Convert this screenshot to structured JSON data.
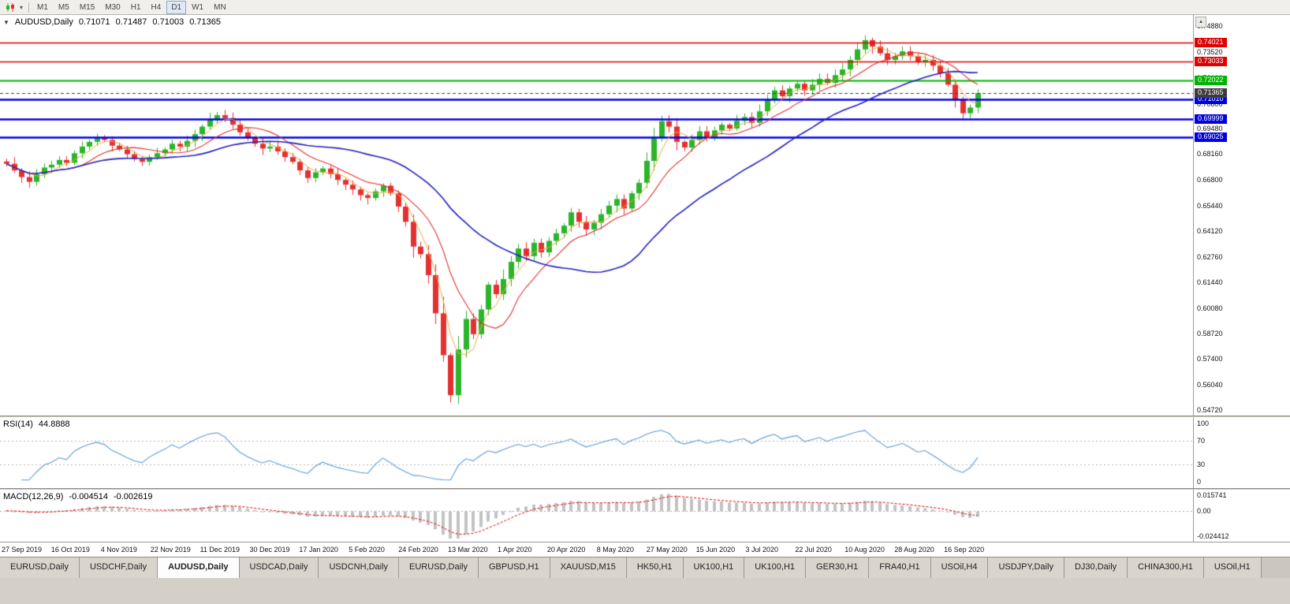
{
  "toolbar": {
    "timeframes": [
      "M1",
      "M5",
      "M15",
      "M30",
      "H1",
      "H4",
      "D1",
      "W1",
      "MN"
    ],
    "active_timeframe": "D1",
    "icons": [
      {
        "name": "chart-type-icon"
      },
      {
        "name": "dropdown-caret-icon",
        "glyph": "▾"
      },
      {
        "name": "scroll-top-icon",
        "glyph": "▴"
      }
    ]
  },
  "chart": {
    "title": {
      "symbol": "AUDUSD,Daily",
      "open": "0.71071",
      "high": "0.71487",
      "low": "0.71003",
      "close": "0.71365"
    },
    "price_axis_labels": [
      "0.74880",
      "0.73520",
      "0.72160",
      "0.70800",
      "0.69480",
      "0.68160",
      "0.66800",
      "0.65440",
      "0.64120",
      "0.62760",
      "0.61440",
      "0.60080",
      "0.58720",
      "0.57400",
      "0.56040",
      "0.54720"
    ],
    "levels": [
      {
        "price": 0.74021,
        "label": "0.74021",
        "color": "#e00000",
        "width": 1.5
      },
      {
        "price": 0.73033,
        "label": "0.73033",
        "color": "#e00000",
        "width": 1.5
      },
      {
        "price": 0.72022,
        "label": "0.72022",
        "color": "#00b300",
        "width": 2
      },
      {
        "price": 0.7101,
        "label": "0.71010",
        "color": "#0000e0",
        "width": 2.5
      },
      {
        "price": 0.69999,
        "label": "0.69999",
        "color": "#0000e0",
        "width": 2.5
      },
      {
        "price": 0.69025,
        "label": "0.69025",
        "color": "#0000e0",
        "width": 2.5
      }
    ],
    "bid_label": {
      "price": 0.71365,
      "label": "0.71365",
      "color": "#3c3c3c"
    },
    "colors": {
      "bull": "#2ab52a",
      "bear": "#e53030",
      "ma_fast": "#f2a93b",
      "ma_mid": "#e03030",
      "ma_slow": "#1f1fbf",
      "rsi": "#5b9bd5",
      "macd_hist": "#c2c2c2",
      "macd_signal": "#e00000"
    }
  },
  "indicators": {
    "rsi": {
      "name": "RSI(14)",
      "value": "44.8888",
      "levels": [
        "100",
        "70",
        "30",
        "0"
      ]
    },
    "macd": {
      "name": "MACD(12,26,9)",
      "value": "-0.004514",
      "signal": "-0.002619",
      "axis": [
        "0.015741",
        "0.00",
        "-0.024412"
      ]
    }
  },
  "chart_data": {
    "type": "candlestick",
    "title": "AUDUSD Daily",
    "x_labels": [
      "27 Sep 2019",
      "16 Oct 2019",
      "4 Nov 2019",
      "22 Nov 2019",
      "11 Dec 2019",
      "30 Dec 2019",
      "17 Jan 2020",
      "5 Feb 2020",
      "24 Feb 2020",
      "13 Mar 2020",
      "1 Apr 2020",
      "20 Apr 2020",
      "8 May 2020",
      "27 May 2020",
      "15 Jun 2020",
      "3 Jul 2020",
      "22 Jul 2020",
      "10 Aug 2020",
      "28 Aug 2020",
      "16 Sep 2020"
    ],
    "y_range": [
      0.5443,
      0.7546
    ],
    "current_ohlc": {
      "open": 0.71071,
      "high": 0.71487,
      "low": 0.71003,
      "close": 0.71365
    },
    "closes": [
      0.6765,
      0.673,
      0.6695,
      0.667,
      0.671,
      0.6745,
      0.676,
      0.6785,
      0.677,
      0.682,
      0.6855,
      0.688,
      0.69,
      0.689,
      0.686,
      0.684,
      0.6815,
      0.679,
      0.6775,
      0.68,
      0.682,
      0.684,
      0.687,
      0.6855,
      0.6885,
      0.692,
      0.696,
      0.7,
      0.702,
      0.7005,
      0.697,
      0.693,
      0.69,
      0.687,
      0.6845,
      0.6855,
      0.683,
      0.68,
      0.6775,
      0.673,
      0.669,
      0.672,
      0.674,
      0.671,
      0.668,
      0.6655,
      0.663,
      0.66,
      0.6585,
      0.662,
      0.665,
      0.661,
      0.654,
      0.646,
      0.633,
      0.629,
      0.618,
      0.598,
      0.576,
      0.555,
      0.579,
      0.595,
      0.587,
      0.6,
      0.613,
      0.608,
      0.616,
      0.625,
      0.632,
      0.628,
      0.635,
      0.63,
      0.636,
      0.64,
      0.644,
      0.651,
      0.646,
      0.642,
      0.6455,
      0.65,
      0.6545,
      0.658,
      0.653,
      0.661,
      0.6665,
      0.678,
      0.69,
      0.6988,
      0.696,
      0.688,
      0.685,
      0.689,
      0.6935,
      0.6905,
      0.694,
      0.697,
      0.695,
      0.699,
      0.701,
      0.698,
      0.704,
      0.71,
      0.715,
      0.712,
      0.716,
      0.7185,
      0.715,
      0.718,
      0.721,
      0.719,
      0.723,
      0.726,
      0.731,
      0.7365,
      0.7414,
      0.738,
      0.7345,
      0.731,
      0.733,
      0.7355,
      0.733,
      0.73,
      0.731,
      0.728,
      0.724,
      0.718,
      0.71,
      0.703,
      0.706,
      0.7136
    ],
    "horizontal_levels": [
      0.74021,
      0.73033,
      0.72022,
      0.7101,
      0.69999,
      0.69025
    ],
    "rsi": {
      "period": 14,
      "current": 44.8888,
      "range": [
        0,
        100
      ],
      "guides": [
        70,
        30
      ]
    },
    "macd": {
      "fast": 12,
      "slow": 26,
      "signal_period": 9,
      "macd": -0.004514,
      "signal": -0.002619,
      "range": [
        -0.024412,
        0.015741
      ]
    }
  },
  "tabs": {
    "items": [
      "EURUSD,Daily",
      "USDCHF,Daily",
      "AUDUSD,Daily",
      "USDCAD,Daily",
      "USDCNH,Daily",
      "EURUSD,Daily",
      "GBPUSD,H1",
      "XAUUSD,M15",
      "HK50,H1",
      "UK100,H1",
      "UK100,H1",
      "GER30,H1",
      "FRA40,H1",
      "USOil,H4",
      "USDJPY,Daily",
      "DJ30,Daily",
      "CHINA300,H1",
      "USOil,H1"
    ],
    "active_index": 2
  }
}
